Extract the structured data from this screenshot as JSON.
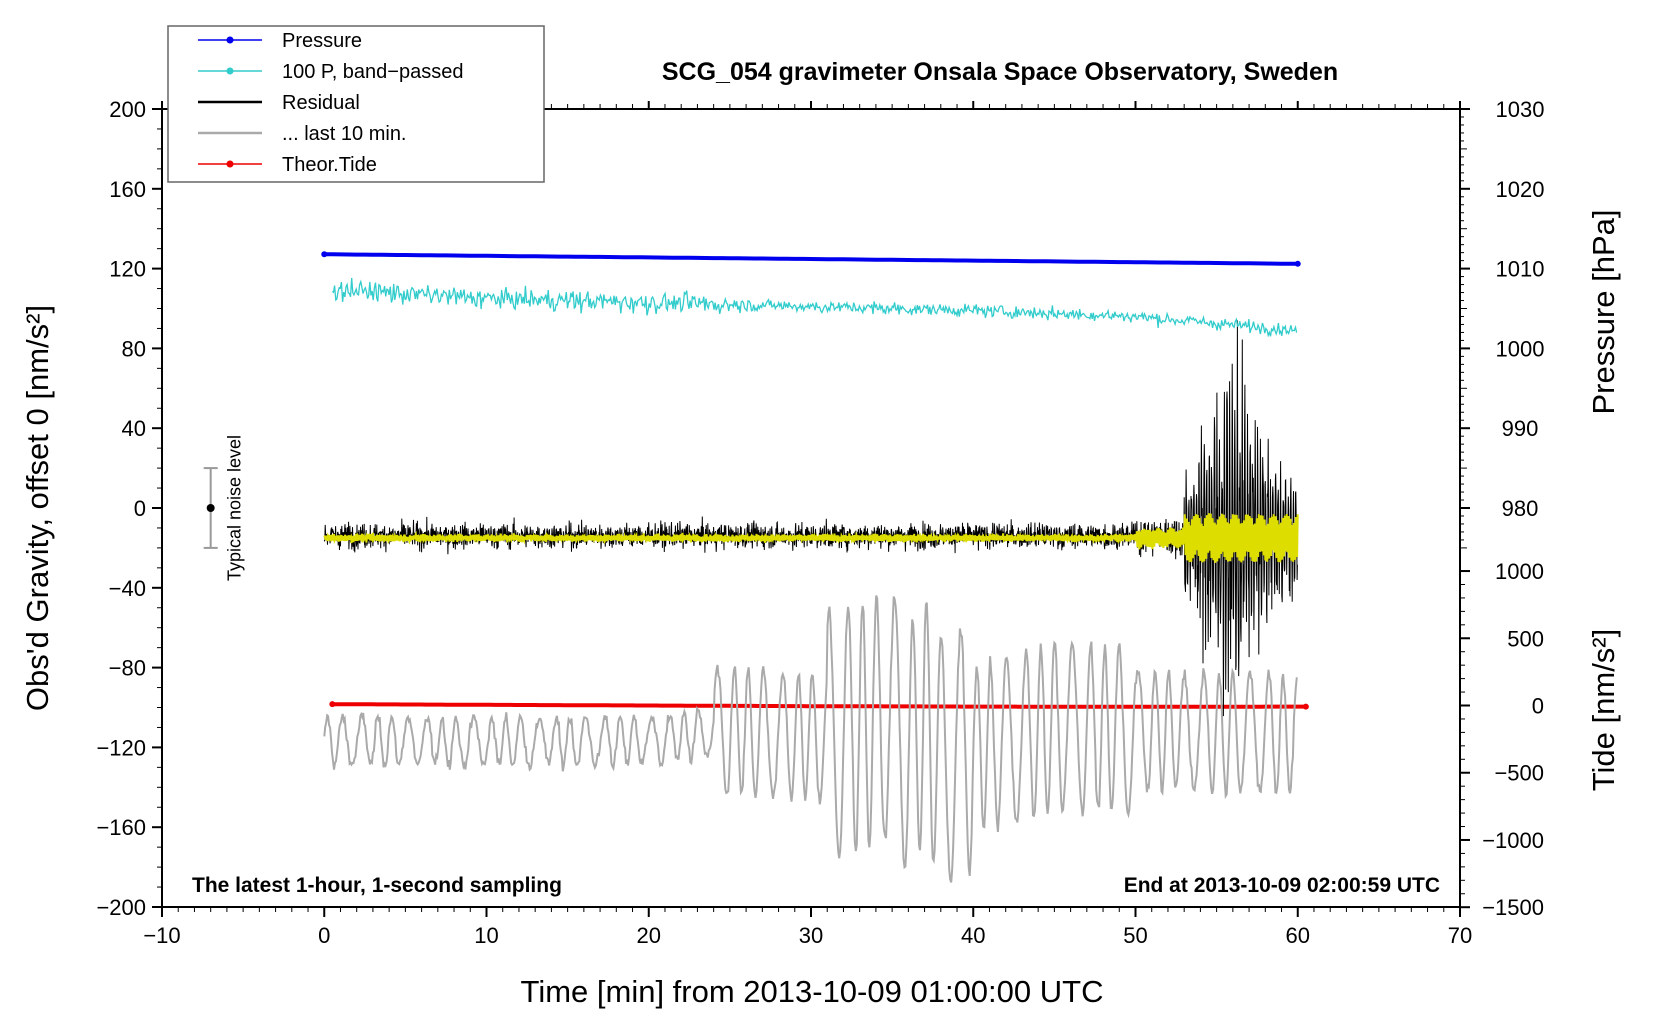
{
  "chart_data": {
    "type": "line",
    "title": "SCG_054 gravimeter Onsala Space Observatory, Sweden",
    "xlabel": "Time [min] from 2013-10-09 01:00:00 UTC",
    "ylabel_left": "Obs'd Gravity, offset 0 [nm/s²]",
    "ylabel_pressure": "Pressure [hPa]",
    "ylabel_tide": "Tide [nm/s²]",
    "xlim": [
      -10,
      70
    ],
    "ylim_left": [
      -200,
      200
    ],
    "x_ticks": [
      -10,
      0,
      10,
      20,
      30,
      40,
      50,
      60,
      70
    ],
    "x_tick_labels": [
      "−10",
      "0",
      "10",
      "20",
      "30",
      "40",
      "50",
      "60",
      "70"
    ],
    "y_left_ticks": [
      200,
      160,
      120,
      80,
      40,
      0,
      -40,
      -80,
      -120,
      -160,
      -200
    ],
    "y_left_tick_labels": [
      "200",
      "160",
      "120",
      "80",
      "40",
      "0",
      "−40",
      "−80",
      "−120",
      "−160",
      "−200"
    ],
    "pressure_axis": {
      "ticks": [
        1030,
        1020,
        1010,
        1000,
        990,
        980
      ],
      "tick_labels": [
        "1030",
        "1020",
        "1010",
        "1000",
        "990",
        "980"
      ],
      "gravity_at_1000": 80,
      "gravity_per_hpa": 4
    },
    "tide_axis": {
      "ticks": [
        1000,
        500,
        0,
        -500,
        -1000,
        -1500
      ],
      "tick_labels": [
        "1000",
        "500",
        "0",
        "−500",
        "−1000",
        "−1500"
      ],
      "gravity_at_0": -99,
      "gravity_per_unit": 0.0674
    },
    "legend": [
      {
        "label": "Pressure",
        "color": "#0000ee",
        "marker": true
      },
      {
        "label": "100 P, band−passed",
        "color": "#33cccc",
        "marker": true
      },
      {
        "label": "Residual",
        "color": "#000000",
        "marker": false
      },
      {
        "label": "... last 10 min.",
        "color": "#aaaaaa",
        "marker": false
      },
      {
        "label": "Theor.Tide",
        "color": "#ee0000",
        "marker": true
      }
    ],
    "series": [
      {
        "name": "Pressure",
        "color": "#0000ee",
        "axis": "pressure",
        "x": [
          0,
          10,
          20,
          30,
          40,
          50,
          60
        ],
        "values": [
          1011.8,
          1011.6,
          1011.4,
          1011.2,
          1011.0,
          1010.8,
          1010.6
        ]
      },
      {
        "name": "100 P, band-passed",
        "color": "#33cccc",
        "axis": "left",
        "x": [
          0,
          10,
          20,
          30,
          40,
          50,
          60
        ],
        "values": [
          110,
          105,
          103,
          101,
          99,
          96,
          89
        ]
      },
      {
        "name": "Residual",
        "color": "#000000",
        "axis": "left",
        "x": [
          0,
          10,
          20,
          30,
          40,
          50,
          52,
          54,
          56,
          58,
          60
        ],
        "values": [
          -14,
          -14,
          -15,
          -15,
          -15,
          -14,
          -12,
          25,
          75,
          -20,
          5
        ]
      },
      {
        "name": "Residual (smoothed)",
        "color": "#dddd00",
        "axis": "left",
        "x": [
          0,
          20,
          40,
          50,
          55,
          60
        ],
        "values": [
          -15,
          -15,
          -15,
          -15,
          -15,
          -15
        ]
      },
      {
        "name": "... last 10 min.",
        "color": "#aaaaaa",
        "axis": "left",
        "x": [
          0,
          10,
          20,
          25,
          30,
          33,
          35,
          36,
          37,
          38,
          45,
          50,
          55,
          60
        ],
        "values": [
          -125,
          -130,
          -125,
          -95,
          -115,
          -80,
          -45,
          -170,
          -50,
          -185,
          -80,
          -90,
          -95,
          -105
        ]
      },
      {
        "name": "Theor.Tide",
        "color": "#ee0000",
        "axis": "tide",
        "x": [
          0.5,
          10,
          20,
          30,
          40,
          50,
          60.5
        ],
        "values": [
          10,
          5,
          0,
          -5,
          -8,
          -10,
          -8
        ]
      }
    ],
    "noise_bar": {
      "label": "Typical noise level",
      "x": -7,
      "center": 0,
      "low": -20,
      "high": 20
    },
    "annotation_left": "The latest 1-hour, 1-second sampling",
    "annotation_right": "End at 2013-10-09 02:00:59 UTC"
  }
}
